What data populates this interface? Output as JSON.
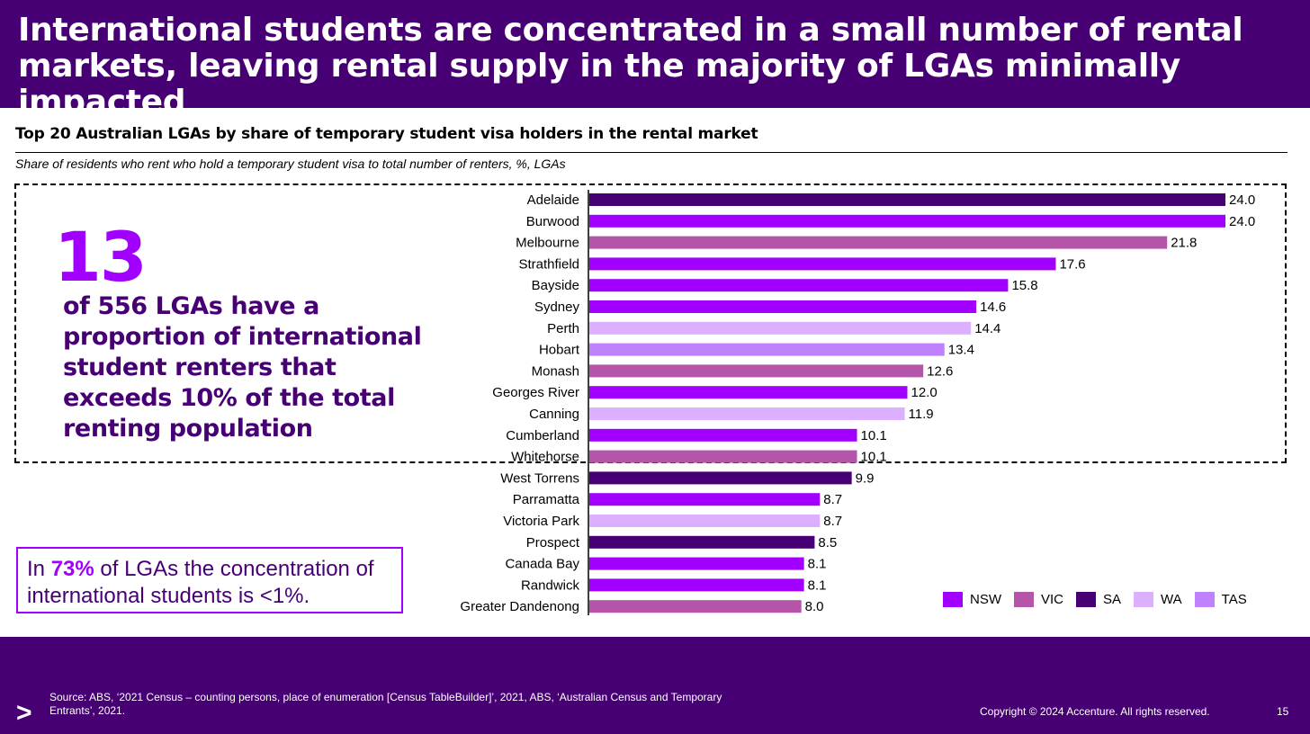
{
  "header": {
    "title": "International students are concentrated in a small number of rental markets, leaving rental supply in the majority of LGAs minimally impacted"
  },
  "highlight": {
    "number": "13",
    "description": "of 556 LGAs have a proportion of international student renters that exceeds 10% of the total renting population"
  },
  "callout": {
    "prefix": "In ",
    "percent": "73%",
    "suffix": " of LGAs the concentration of international students is <1%."
  },
  "colors": {
    "NSW": "#a100ff",
    "VIC": "#b455aa",
    "SA": "#460073",
    "WA": "#dcafff",
    "TAS": "#be82ff",
    "header_bg": "#460073"
  },
  "chart_data": {
    "type": "bar",
    "orientation": "horizontal",
    "title": "Top 20 Australian LGAs by share of temporary student visa holders in the rental market",
    "subtitle": "Share of residents who rent who hold a temporary student visa to total number of renters, %, LGAs",
    "categories": [
      "Adelaide",
      "Burwood",
      "Melbourne",
      "Strathfield",
      "Bayside",
      "Sydney",
      "Perth",
      "Hobart",
      "Monash",
      "Georges River",
      "Canning",
      "Cumberland",
      "Whitehorse",
      "West Torrens",
      "Parramatta",
      "Victoria Park",
      "Prospect",
      "Canada Bay",
      "Randwick",
      "Greater Dandenong"
    ],
    "values": [
      24.0,
      24.0,
      21.8,
      17.6,
      15.8,
      14.6,
      14.4,
      13.4,
      12.6,
      12.0,
      11.9,
      10.1,
      10.1,
      9.9,
      8.7,
      8.7,
      8.5,
      8.1,
      8.1,
      8.0
    ],
    "labels": [
      "24.0",
      "24.0",
      "21.8",
      "17.6",
      "15.8",
      "14.6",
      "14.4",
      "13.4",
      "12.6",
      "12.0",
      "11.9",
      "10.1",
      "10.1",
      "9.9",
      "8.7",
      "8.7",
      "8.5",
      "8.1",
      "8.1",
      "8.0"
    ],
    "states": [
      "SA",
      "NSW",
      "VIC",
      "NSW",
      "NSW",
      "NSW",
      "WA",
      "TAS",
      "VIC",
      "NSW",
      "WA",
      "NSW",
      "VIC",
      "SA",
      "NSW",
      "WA",
      "SA",
      "NSW",
      "NSW",
      "VIC"
    ],
    "legend": [
      "NSW",
      "VIC",
      "SA",
      "WA",
      "TAS"
    ],
    "legend_position": "bottom-right",
    "xlim": [
      0,
      24
    ],
    "grid": false
  },
  "footer": {
    "logo": ">",
    "source": "Source: ABS, ‘2021 Census – counting persons, place of enumeration [Census TableBuilder]’, 2021, ABS, ‘Australian Census and Temporary Entrants’, 2021.",
    "copyright": "Copyright © 2024 Accenture. All rights reserved.",
    "page_number": "15"
  }
}
